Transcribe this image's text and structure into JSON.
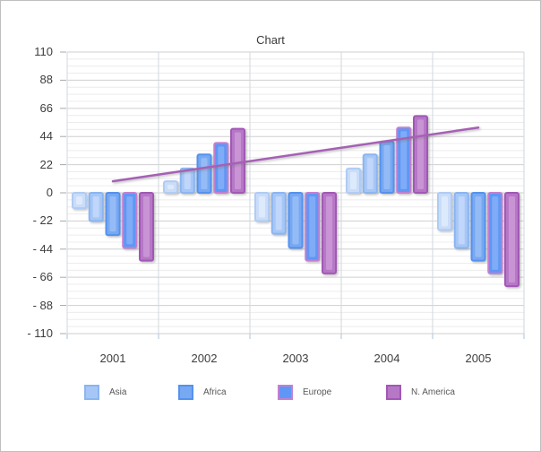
{
  "window": {
    "background": "#ffffff",
    "border_color": "#bfbfbf"
  },
  "chart_data": {
    "type": "bar",
    "title": "Chart",
    "categories": [
      "2001",
      "2002",
      "2003",
      "2004",
      "2005"
    ],
    "series": [
      {
        "name": "",
        "in_legend": false,
        "fill": "#cadcf8",
        "border": "#afccf5",
        "highlight": "#ddeafc",
        "values": [
          -12,
          9,
          -22,
          19,
          -29
        ]
      },
      {
        "name": "Asia",
        "in_legend": true,
        "fill": "#a6c7f6",
        "border": "#8ab5f2",
        "highlight": "#c0d6fa",
        "values": [
          -22,
          19,
          -32,
          30,
          -43
        ]
      },
      {
        "name": "Africa",
        "in_legend": true,
        "fill": "#77a8f2",
        "border": "#5492ee",
        "highlight": "#95bbf6",
        "values": [
          -33,
          30,
          -43,
          40,
          -53
        ]
      },
      {
        "name": "Europe",
        "in_legend": true,
        "fill": "#5e97f5",
        "border": "#c47fd0",
        "highlight": "#7fabf7",
        "values": [
          -43,
          39,
          -53,
          51,
          -63
        ]
      },
      {
        "name": "N. America",
        "in_legend": true,
        "fill": "#b677c7",
        "border": "#a258b5",
        "highlight": "#c994d4",
        "values": [
          -53,
          50,
          -63,
          60,
          -73
        ]
      }
    ],
    "trend_line": {
      "color": "#a661b5",
      "start_category": "2001",
      "start_value": 9,
      "end_category": "2005",
      "end_value": 51
    },
    "y_axis": {
      "min": -110,
      "max": 110,
      "major_step": 22,
      "minor_step": 5.5,
      "tick_labels": [
        "110",
        "88",
        "66",
        "44",
        "22",
        "0",
        "- 22",
        "- 44",
        "- 66",
        "- 88",
        "- 110"
      ]
    },
    "x_axis": {
      "tick_labels": [
        "2001",
        "2002",
        "2003",
        "2004",
        "2005"
      ]
    },
    "legend": {
      "position": "bottom",
      "entries": [
        "Asia",
        "Africa",
        "Europe",
        "N. America"
      ]
    },
    "grid": {
      "horizontal_minor": true,
      "horizontal_major": true,
      "vertical": true
    }
  }
}
